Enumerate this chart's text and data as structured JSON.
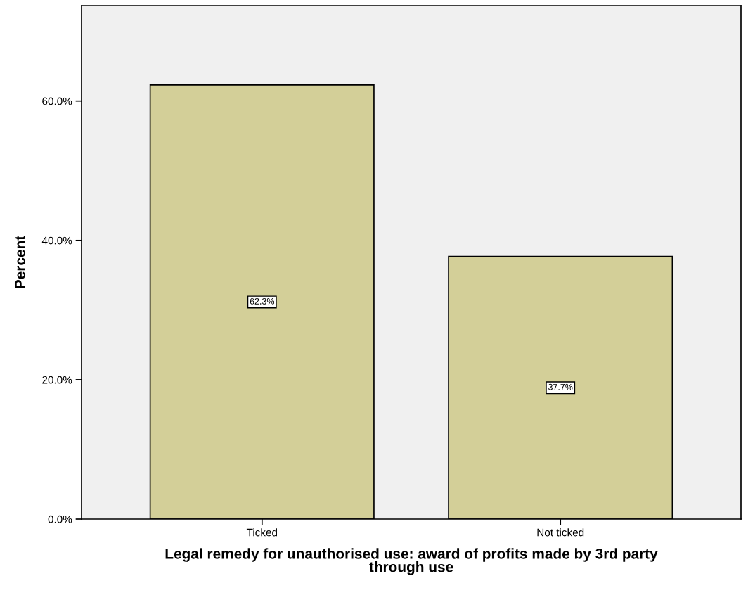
{
  "chart_data": {
    "type": "bar",
    "xlabel": "Legal remedy for unauthorised use: award of profits made by 3rd party\nthrough use",
    "ylabel": "Percent",
    "categories": [
      "Ticked",
      "Not ticked"
    ],
    "values": [
      62.3,
      37.7
    ],
    "value_labels": [
      "62.3%",
      "37.7%"
    ],
    "color": "#d3cf98",
    "ylim": [
      0,
      73.7
    ],
    "yticks": [
      {
        "value": 0,
        "label": "0.0%"
      },
      {
        "value": 20,
        "label": "20.0%"
      },
      {
        "value": 40,
        "label": "40.0%"
      },
      {
        "value": 60,
        "label": "60.0%"
      }
    ],
    "grid": false,
    "legend": false
  }
}
